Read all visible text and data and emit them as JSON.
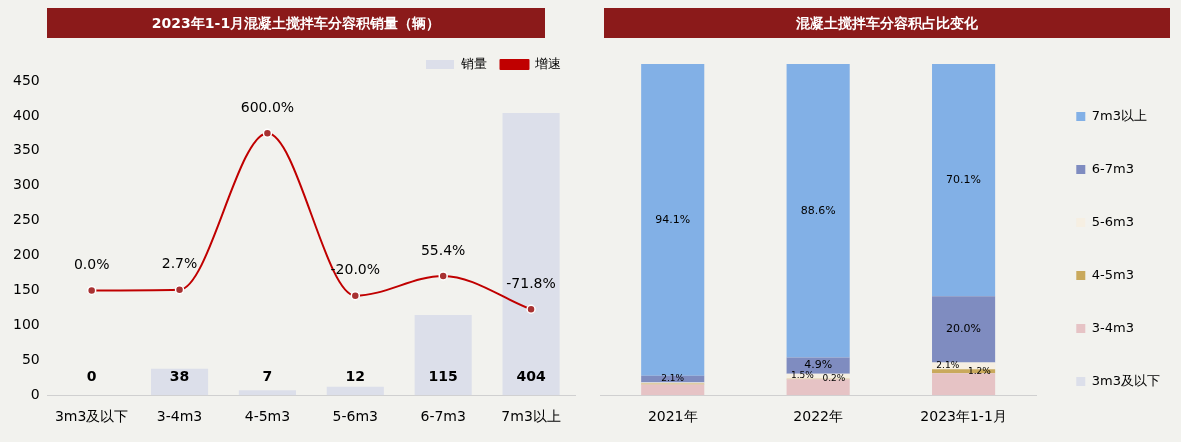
{
  "chart_data": [
    {
      "type": "bar",
      "title": "2023年1-1月混凝土搅拌车分容积销量（辆）",
      "categories": [
        "3m3及以下",
        "3-4m3",
        "4-5m3",
        "5-6m3",
        "6-7m3",
        "7m3以上"
      ],
      "series": [
        {
          "name": "销量",
          "type": "bar",
          "color": "#dcdfea",
          "values": [
            0,
            38,
            7,
            12,
            115,
            404
          ],
          "value_labels": [
            "0",
            "38",
            "7",
            "12",
            "115",
            "404"
          ]
        },
        {
          "name": "增速",
          "type": "line",
          "axis": "y2",
          "color": "#c00000",
          "values": [
            0,
            2.7,
            600,
            -20,
            55.4,
            -71.8
          ],
          "value_labels": [
            "0.0%",
            "2.7%",
            "600.0%",
            "-20.0%",
            "55.4%",
            "-71.8%"
          ]
        }
      ],
      "ylim": [
        0,
        450
      ],
      "yticks": [
        0,
        50,
        100,
        150,
        200,
        250,
        300,
        350,
        400,
        450
      ],
      "tick_labels": "xy",
      "marker": "circle",
      "legend": "top right",
      "grid": false
    },
    {
      "type": "bar",
      "title": "混凝土搅拌车分容积占比变化",
      "categories": [
        "2021年",
        "2022年",
        "2023年1-1月"
      ],
      "stacked": true,
      "series": [
        {
          "name": "3m3及以下",
          "color": "#dcdfea",
          "values": [
            0,
            0,
            0
          ],
          "value_labels": [
            null,
            null,
            null
          ]
        },
        {
          "name": "3-4m3",
          "color": "#e6c3c5",
          "values": [
            3.2,
            4.8,
            6.6
          ],
          "value_labels": [
            null,
            null,
            null
          ]
        },
        {
          "name": "4-5m3",
          "color": "#c9a95c",
          "values": [
            0.3,
            0.2,
            1.2
          ],
          "value_labels": [
            null,
            "0.2%",
            "1.2%"
          ]
        },
        {
          "name": "5-6m3",
          "color": "#f6efe2",
          "values": [
            0.3,
            1.5,
            2.1
          ],
          "value_labels": [
            null,
            "1.5%",
            "2.1%"
          ]
        },
        {
          "name": "6-7m3",
          "color": "#7f8cc0",
          "values": [
            2.1,
            4.9,
            20.0
          ],
          "value_labels": [
            "2.1%",
            "4.9%",
            "20.0%"
          ]
        },
        {
          "name": "7m3以上",
          "color": "#82b0e6",
          "values": [
            94.1,
            88.6,
            70.1
          ],
          "value_labels": [
            "94.1%",
            "88.6%",
            "70.1%"
          ]
        }
      ],
      "ylim": [
        0,
        100
      ],
      "tick_labels": "x",
      "legend": "right",
      "grid": false
    }
  ]
}
